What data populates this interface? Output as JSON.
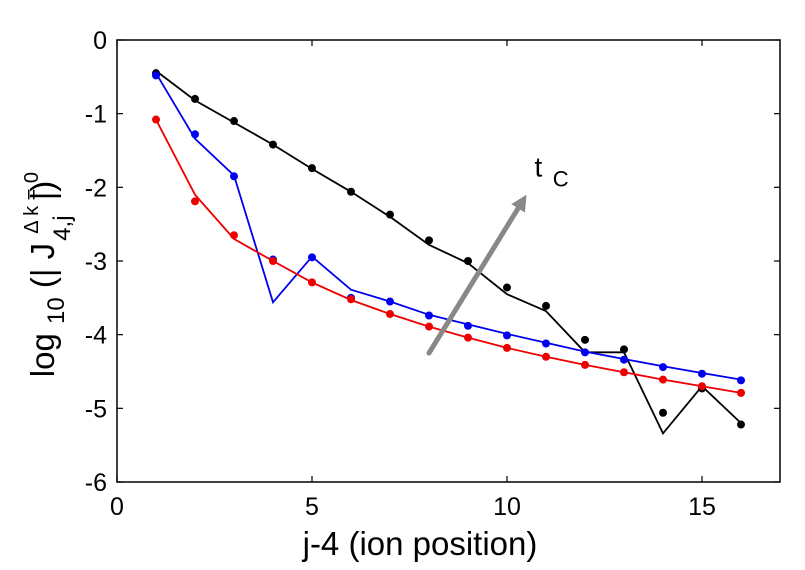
{
  "chart_data": {
    "type": "line",
    "title": "",
    "xlabel": "j-4 (ion position)",
    "ylabel": {
      "prefix": "log",
      "log_base": "10",
      "open": "(| J",
      "superscript": "Δ k = 0",
      "subscript": "4,j",
      "close": "|)"
    },
    "xlim": [
      0,
      17
    ],
    "ylim": [
      -6,
      0
    ],
    "xticks": [
      0,
      5,
      10,
      15
    ],
    "yticks": [
      0,
      -1,
      -2,
      -3,
      -4,
      -5,
      -6
    ],
    "grid": false,
    "annotation": {
      "text": "t",
      "subscript": "C",
      "from": [
        8.0,
        -4.25
      ],
      "to": [
        10.5,
        -2.1
      ],
      "arrow_color": "#888888"
    },
    "series": [
      {
        "name": "black",
        "color": "#000000",
        "x": [
          1,
          2,
          3,
          4,
          5,
          6,
          7,
          8,
          9,
          10,
          11,
          12,
          13,
          14,
          15,
          16
        ],
        "line": [
          -0.42,
          -0.82,
          -1.12,
          -1.42,
          -1.75,
          -2.06,
          -2.4,
          -2.78,
          -3.03,
          -3.45,
          -3.68,
          -4.24,
          -4.24,
          -5.34,
          -4.7,
          -5.2
        ],
        "points": [
          -0.45,
          -0.8,
          -1.1,
          -1.42,
          -1.74,
          -2.06,
          -2.37,
          -2.72,
          -3.0,
          -3.36,
          -3.61,
          -4.07,
          -4.2,
          -5.06,
          -4.73,
          -5.22
        ]
      },
      {
        "name": "blue",
        "color": "#0000ee",
        "x": [
          1,
          2,
          3,
          4,
          5,
          6,
          7,
          8,
          9,
          10,
          11,
          12,
          13,
          14,
          15,
          16
        ],
        "line": [
          -0.45,
          -1.34,
          -1.84,
          -3.56,
          -2.94,
          -3.39,
          -3.55,
          -3.73,
          -3.86,
          -3.99,
          -4.11,
          -4.23,
          -4.33,
          -4.43,
          -4.52,
          -4.61
        ],
        "points": [
          -0.48,
          -1.28,
          -1.85,
          -2.98,
          -2.95,
          -3.5,
          -3.55,
          -3.74,
          -3.88,
          -4.01,
          -4.12,
          -4.24,
          -4.34,
          -4.44,
          -4.53,
          -4.62
        ]
      },
      {
        "name": "red",
        "color": "#ee0000",
        "x": [
          1,
          2,
          3,
          4,
          5,
          6,
          7,
          8,
          9,
          10,
          11,
          12,
          13,
          14,
          15,
          16
        ],
        "line": [
          -1.08,
          -2.1,
          -2.7,
          -3.0,
          -3.29,
          -3.53,
          -3.72,
          -3.89,
          -4.04,
          -4.18,
          -4.3,
          -4.41,
          -4.51,
          -4.61,
          -4.7,
          -4.79
        ],
        "points": [
          -1.08,
          -2.19,
          -2.65,
          -3.0,
          -3.29,
          -3.52,
          -3.72,
          -3.89,
          -4.04,
          -4.18,
          -4.3,
          -4.41,
          -4.51,
          -4.61,
          -4.7,
          -4.79
        ]
      }
    ]
  }
}
